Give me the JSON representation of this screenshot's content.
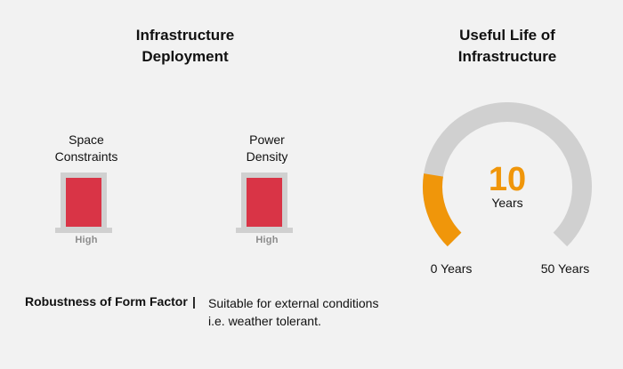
{
  "deployment": {
    "title": "Infrastructure\nDeployment",
    "indicators": [
      {
        "label": "Space\nConstraints",
        "level": "High",
        "color": "#d93446"
      },
      {
        "label": "Power\nDensity",
        "level": "High",
        "color": "#d93446"
      }
    ]
  },
  "useful_life": {
    "title": "Useful Life of\nInfrastructure",
    "value": "10",
    "unit": "Years",
    "min_label": "0 Years",
    "max_label": "50 Years",
    "value_years": 10,
    "min_years": 0,
    "max_years": 50,
    "track_color": "#d0d0d0",
    "fill_color": "#f0960a"
  },
  "robustness": {
    "label": "Robustness of Form Factor",
    "separator": "|",
    "text": "Suitable for external conditions\ni.e. weather tolerant."
  }
}
